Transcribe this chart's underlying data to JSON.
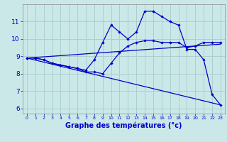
{
  "xlabel": "Graphe des températures (°c)",
  "bg_color": "#cbe8e8",
  "grid_color": "#aacfcf",
  "line_color": "#0000cc",
  "xlim": [
    -0.5,
    23.5
  ],
  "ylim": [
    5.7,
    12.0
  ],
  "yticks": [
    6,
    7,
    8,
    9,
    10,
    11
  ],
  "xticks": [
    0,
    1,
    2,
    3,
    4,
    5,
    6,
    7,
    8,
    9,
    10,
    11,
    12,
    13,
    14,
    15,
    16,
    17,
    18,
    19,
    20,
    21,
    22,
    23
  ],
  "line1_x": [
    0,
    1,
    2,
    3,
    4,
    5,
    6,
    7,
    8,
    9,
    10,
    11,
    12,
    13,
    14,
    15,
    16,
    17,
    18,
    19,
    20,
    21,
    22,
    23
  ],
  "line1_y": [
    8.9,
    8.9,
    8.8,
    8.6,
    8.5,
    8.4,
    8.3,
    8.2,
    8.8,
    9.8,
    10.8,
    10.4,
    10.0,
    10.4,
    11.6,
    11.6,
    11.3,
    11.0,
    10.8,
    9.4,
    9.4,
    8.8,
    6.8,
    6.2
  ],
  "line2_x": [
    0,
    1,
    2,
    3,
    4,
    5,
    6,
    7,
    8,
    9,
    10,
    11,
    12,
    13,
    14,
    15,
    16,
    17,
    18,
    19,
    20,
    21,
    22,
    23
  ],
  "line2_y": [
    8.9,
    8.9,
    8.8,
    8.6,
    8.5,
    8.4,
    8.3,
    8.1,
    8.1,
    8.0,
    8.6,
    9.2,
    9.6,
    9.8,
    9.9,
    9.9,
    9.8,
    9.8,
    9.8,
    9.5,
    9.6,
    9.8,
    9.8,
    9.8
  ],
  "line3_x": [
    0,
    23
  ],
  "line3_y": [
    8.9,
    9.7
  ],
  "line4_x": [
    0,
    23
  ],
  "line4_y": [
    8.9,
    6.2
  ]
}
